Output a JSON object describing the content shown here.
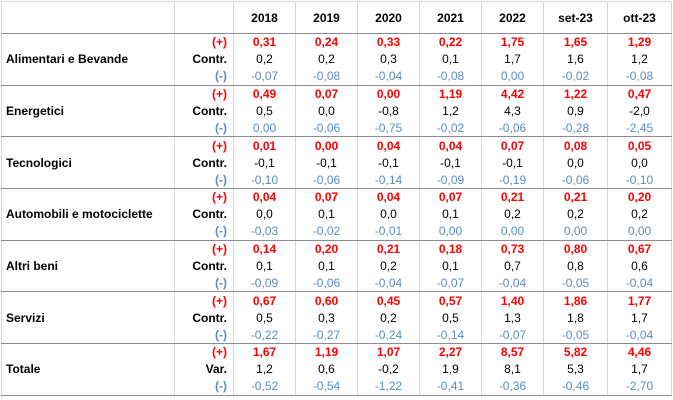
{
  "header": {
    "corner": "",
    "columns": [
      "2018",
      "2019",
      "2020",
      "2021",
      "2022",
      "set-23",
      "ott-23"
    ]
  },
  "groups": [
    {
      "name": "Alimentari e Bevande",
      "rows": [
        {
          "label": "(+)",
          "values": [
            "0,31",
            "0,24",
            "0,33",
            "0,22",
            "1,75",
            "1,65",
            "1,29"
          ]
        },
        {
          "label": "Contr.",
          "values": [
            "0,2",
            "0,2",
            "0,3",
            "0,1",
            "1,7",
            "1,6",
            "1,2"
          ]
        },
        {
          "label": "(-)",
          "values": [
            "-0,07",
            "-0,08",
            "-0,04",
            "-0,08",
            "0,00",
            "-0,02",
            "-0,08"
          ]
        }
      ]
    },
    {
      "name": "Energetici",
      "rows": [
        {
          "label": "(+)",
          "values": [
            "0,49",
            "0,07",
            "0,00",
            "1,19",
            "4,42",
            "1,22",
            "0,47"
          ]
        },
        {
          "label": "Contr.",
          "values": [
            "0,5",
            "0,0",
            "-0,8",
            "1,2",
            "4,3",
            "0,9",
            "-2,0"
          ]
        },
        {
          "label": "(-)",
          "values": [
            "0,00",
            "-0,06",
            "-0,75",
            "-0,02",
            "-0,06",
            "-0,28",
            "-2,45"
          ]
        }
      ]
    },
    {
      "name": "Tecnologici",
      "rows": [
        {
          "label": "(+)",
          "values": [
            "0,01",
            "0,00",
            "0,04",
            "0,04",
            "0,07",
            "0,08",
            "0,05"
          ]
        },
        {
          "label": "Contr.",
          "values": [
            "-0,1",
            "-0,1",
            "-0,1",
            "-0,1",
            "-0,1",
            "0,0",
            "0,0"
          ]
        },
        {
          "label": "(-)",
          "values": [
            "-0,10",
            "-0,06",
            "-0,14",
            "-0,09",
            "-0,19",
            "-0,06",
            "-0,10"
          ]
        }
      ]
    },
    {
      "name": "Automobili e motociclette",
      "rows": [
        {
          "label": "(+)",
          "values": [
            "0,04",
            "0,07",
            "0,04",
            "0,07",
            "0,21",
            "0,21",
            "0,20"
          ]
        },
        {
          "label": "Contr.",
          "values": [
            "0,0",
            "0,1",
            "0,0",
            "0,1",
            "0,2",
            "0,2",
            "0,2"
          ]
        },
        {
          "label": "(-)",
          "values": [
            "-0,03",
            "-0,02",
            "-0,01",
            "0,00",
            "0,00",
            "0,00",
            "0,00"
          ]
        }
      ]
    },
    {
      "name": "Altri beni",
      "rows": [
        {
          "label": "(+)",
          "values": [
            "0,14",
            "0,20",
            "0,21",
            "0,18",
            "0,73",
            "0,80",
            "0,67"
          ]
        },
        {
          "label": "Contr.",
          "values": [
            "0,1",
            "0,1",
            "0,2",
            "0,1",
            "0,7",
            "0,8",
            "0,6"
          ]
        },
        {
          "label": "(-)",
          "values": [
            "-0,09",
            "-0,06",
            "-0,04",
            "-0,07",
            "-0,04",
            "-0,05",
            "-0,04"
          ]
        }
      ]
    },
    {
      "name": "Servizi",
      "rows": [
        {
          "label": "(+)",
          "values": [
            "0,67",
            "0,60",
            "0,45",
            "0,57",
            "1,40",
            "1,86",
            "1,77"
          ]
        },
        {
          "label": "Contr.",
          "values": [
            "0,5",
            "0,3",
            "0,2",
            "0,5",
            "1,3",
            "1,8",
            "1,7"
          ]
        },
        {
          "label": "(-)",
          "values": [
            "-0,22",
            "-0,27",
            "-0,24",
            "-0,14",
            "-0,07",
            "-0,05",
            "-0,04"
          ]
        }
      ]
    },
    {
      "name": "Totale",
      "rows": [
        {
          "label": "(+)",
          "values": [
            "1,67",
            "1,19",
            "1,07",
            "2,27",
            "8,57",
            "5,82",
            "4,46"
          ]
        },
        {
          "label": "Var.",
          "values": [
            "1,2",
            "0,6",
            "-0,2",
            "1,9",
            "8,1",
            "5,3",
            "1,7"
          ]
        },
        {
          "label": "(-)",
          "values": [
            "-0,52",
            "-0,54",
            "-1,22",
            "-0,41",
            "-0,36",
            "-0,46",
            "-2,70"
          ]
        }
      ]
    }
  ],
  "colors": {
    "positive": "#ff0000",
    "negative": "#5b8cc6",
    "neutral": "#000000",
    "gridline": "#d9d9d9"
  }
}
